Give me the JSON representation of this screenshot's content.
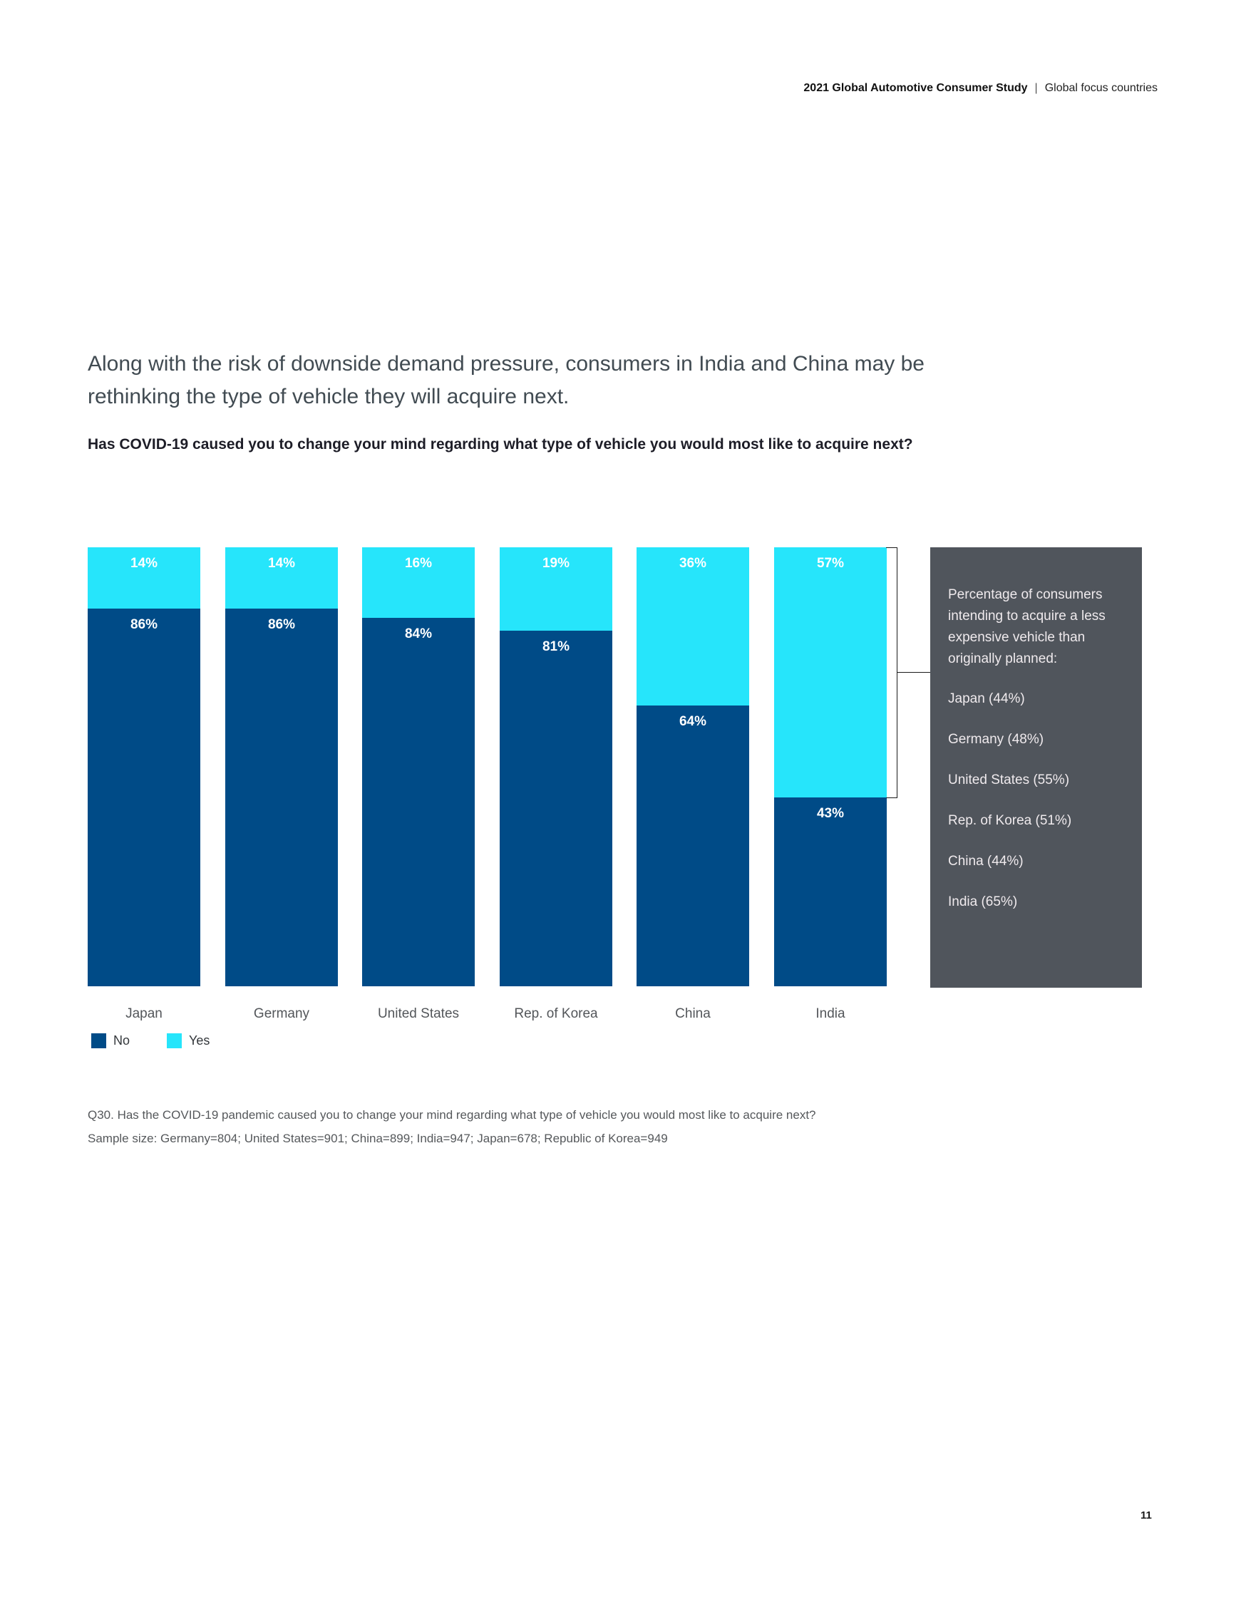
{
  "header": {
    "title_bold": "2021 Global Automotive Consumer Study",
    "separator": "|",
    "title_regular": "Global focus countries"
  },
  "intro": {
    "heading": "Along with the risk of downside demand pressure, consumers in India and China may be rethinking the type of vehicle they will acquire next.",
    "question": "Has COVID-19 caused you to change your mind regarding what type of vehicle you would most like to acquire next?"
  },
  "chart_data": {
    "type": "bar",
    "stacked": true,
    "orientation": "vertical",
    "categories": [
      "Japan",
      "Germany",
      "United States",
      "Rep. of Korea",
      "China",
      "India"
    ],
    "series": [
      {
        "name": "No",
        "color": "#004B87",
        "values": [
          86,
          86,
          84,
          81,
          64,
          43
        ]
      },
      {
        "name": "Yes",
        "color": "#26E5FB",
        "values": [
          14,
          14,
          16,
          19,
          36,
          57
        ]
      }
    ],
    "value_suffix": "%",
    "ylim": [
      0,
      100
    ],
    "grid": false,
    "legend_position": "bottom-left"
  },
  "legend": [
    {
      "label": "No",
      "color": "#004B87"
    },
    {
      "label": "Yes",
      "color": "#26E5FB"
    }
  ],
  "callout": {
    "background": "#50555C",
    "intro": "Percentage of consumers intending to acquire a less expensive vehicle than originally planned:",
    "items": [
      "Japan (44%)",
      "Germany (48%)",
      "United States (55%)",
      "Rep. of Korea (51%)",
      "China (44%)",
      "India (65%)"
    ]
  },
  "footnotes": [
    "Q30. Has the COVID-19 pandemic caused you to change your mind regarding what type of vehicle you would most like to acquire next?",
    "Sample size: Germany=804; United States=901; China=899; India=947; Japan=678; Republic of Korea=949"
  ],
  "page_number": "11"
}
